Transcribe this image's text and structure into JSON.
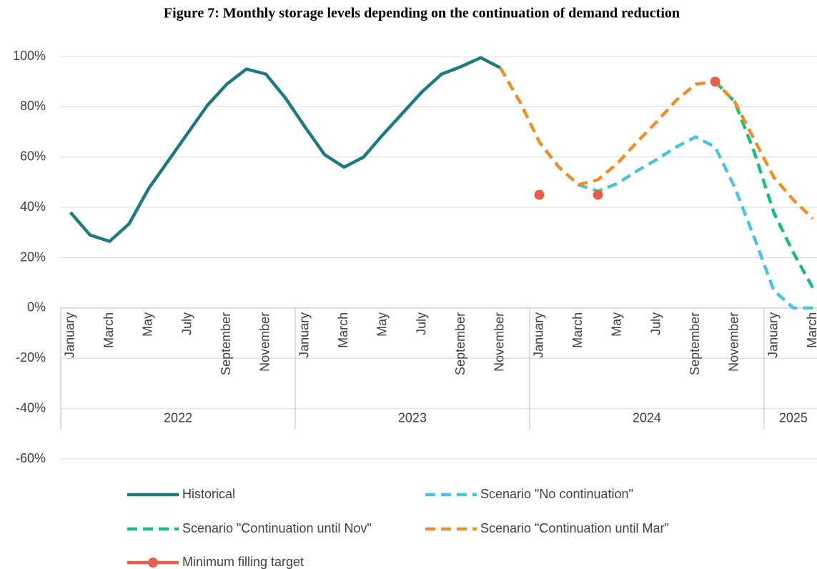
{
  "chart_data": {
    "type": "line",
    "title": "Figure 7: Monthly storage levels depending on the continuation of demand reduction",
    "categories": [
      "January",
      null,
      "March",
      null,
      "May",
      null,
      "July",
      null,
      "September",
      null,
      "November",
      null,
      "January",
      null,
      "March",
      null,
      "May",
      null,
      "July",
      null,
      "September",
      null,
      "November",
      null,
      "January",
      null,
      "March",
      null,
      "May",
      null,
      "July",
      null,
      "September",
      null,
      "November",
      null,
      "January",
      null,
      "March"
    ],
    "category_groups": [
      {
        "label": "2022",
        "count": 12
      },
      {
        "label": "2023",
        "count": 12
      },
      {
        "label": "2024",
        "count": 12
      },
      {
        "label": "2025",
        "count": 3
      }
    ],
    "ylim": [
      -60,
      100
    ],
    "yticks": [
      {
        "value": -60,
        "label": "-60%"
      },
      {
        "value": -40,
        "label": "-40%"
      },
      {
        "value": -20,
        "label": "-20%"
      },
      {
        "value": 0,
        "label": "0%"
      },
      {
        "value": 20,
        "label": "20%"
      },
      {
        "value": 40,
        "label": "40%"
      },
      {
        "value": 60,
        "label": "60%"
      },
      {
        "value": 80,
        "label": "80%"
      },
      {
        "value": 100,
        "label": "100%"
      }
    ],
    "grid": true,
    "legend": "bottom",
    "series": [
      {
        "name": "Historical",
        "color": "#1f7a80",
        "dash": false,
        "marker": false,
        "values": [
          38,
          29,
          26.5,
          33.5,
          47.5,
          58.5,
          69.5,
          80.5,
          89,
          95,
          93,
          83.5,
          72,
          61,
          56,
          60,
          69,
          77.5,
          86,
          93,
          96,
          99.5,
          95.5,
          null,
          null,
          null,
          null,
          null,
          null,
          null,
          null,
          null,
          null,
          null,
          null,
          null,
          null,
          null,
          null
        ]
      },
      {
        "name": "Scenario \"No continuation\"",
        "color": "#4ec3d9",
        "dash": true,
        "marker": false,
        "values": [
          null,
          null,
          null,
          null,
          null,
          null,
          null,
          null,
          null,
          null,
          null,
          null,
          null,
          null,
          null,
          null,
          null,
          null,
          null,
          null,
          null,
          null,
          95.5,
          82,
          66,
          56,
          49,
          46.5,
          49.5,
          54.5,
          59,
          64,
          68,
          64,
          48,
          28,
          7,
          0,
          0
        ]
      },
      {
        "name": "Scenario \"Continuation until Nov\"",
        "color": "#1dbb7d",
        "dash": true,
        "marker": false,
        "values": [
          null,
          null,
          null,
          null,
          null,
          null,
          null,
          null,
          null,
          null,
          null,
          null,
          null,
          null,
          null,
          null,
          null,
          null,
          null,
          null,
          null,
          null,
          null,
          null,
          null,
          null,
          null,
          null,
          null,
          null,
          null,
          null,
          null,
          90,
          82,
          62,
          38,
          22,
          8
        ]
      },
      {
        "name": "Scenario \"Continuation until Mar\"",
        "color": "#e8912d",
        "dash": true,
        "marker": false,
        "values": [
          null,
          null,
          null,
          null,
          null,
          null,
          null,
          null,
          null,
          null,
          null,
          null,
          null,
          null,
          null,
          null,
          null,
          null,
          null,
          null,
          null,
          null,
          95.5,
          82,
          66,
          56,
          49,
          51,
          57.5,
          66,
          74,
          82.5,
          89,
          90,
          82,
          67,
          52,
          43,
          35.5
        ]
      },
      {
        "name": "Minimum filling target",
        "color": "#e5604a",
        "dash": false,
        "marker": true,
        "values": [
          null,
          null,
          null,
          null,
          null,
          null,
          null,
          null,
          null,
          null,
          null,
          null,
          null,
          null,
          null,
          null,
          null,
          null,
          null,
          null,
          null,
          null,
          null,
          null,
          45,
          null,
          null,
          45,
          null,
          null,
          null,
          null,
          null,
          90,
          null,
          null,
          null,
          null,
          null
        ]
      }
    ]
  }
}
